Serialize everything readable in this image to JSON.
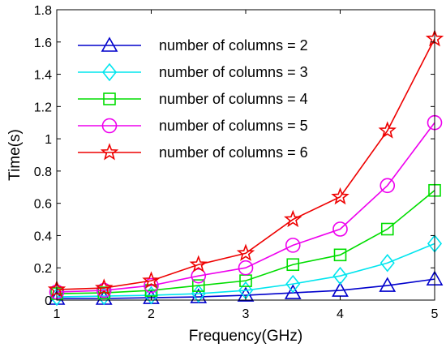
{
  "chart_data": {
    "type": "line",
    "title": "",
    "xlabel": "Frequency(GHz)",
    "ylabel": "Time(s)",
    "xlim": [
      1,
      5
    ],
    "ylim": [
      0,
      1.8
    ],
    "xticks": [
      1,
      2,
      3,
      4,
      5
    ],
    "yticks": [
      0,
      0.2,
      0.4,
      0.6,
      0.8,
      1,
      1.2,
      1.4,
      1.6,
      1.8
    ],
    "xtick_labels": [
      "1",
      "2",
      "3",
      "4",
      "5"
    ],
    "ytick_labels": [
      "0",
      "0.2",
      "0.4",
      "0.6",
      "0.8",
      "1",
      "1.2",
      "1.4",
      "1.6",
      "1.8"
    ],
    "grid": false,
    "legend_position": "top-left",
    "x": [
      1,
      1.5,
      2,
      2.5,
      3,
      3.5,
      4,
      4.5,
      5
    ],
    "series": [
      {
        "name": "number of columns = 2",
        "color": "#0000cc",
        "marker": "triangle",
        "values": [
          0.01,
          0.01,
          0.015,
          0.02,
          0.03,
          0.045,
          0.06,
          0.09,
          0.13
        ]
      },
      {
        "name": "number of columns = 3",
        "color": "#00e5ee",
        "marker": "diamond",
        "values": [
          0.02,
          0.025,
          0.03,
          0.04,
          0.06,
          0.1,
          0.15,
          0.23,
          0.35
        ]
      },
      {
        "name": "number of columns = 4",
        "color": "#00dd00",
        "marker": "square",
        "values": [
          0.04,
          0.045,
          0.06,
          0.09,
          0.12,
          0.22,
          0.28,
          0.44,
          0.68
        ]
      },
      {
        "name": "number of columns = 5",
        "color": "#ee00ee",
        "marker": "circle",
        "values": [
          0.05,
          0.06,
          0.09,
          0.15,
          0.2,
          0.34,
          0.44,
          0.71,
          1.1
        ]
      },
      {
        "name": "number of columns = 6",
        "color": "#ee0000",
        "marker": "star",
        "values": [
          0.065,
          0.075,
          0.12,
          0.22,
          0.29,
          0.5,
          0.64,
          1.05,
          1.62
        ]
      }
    ]
  }
}
